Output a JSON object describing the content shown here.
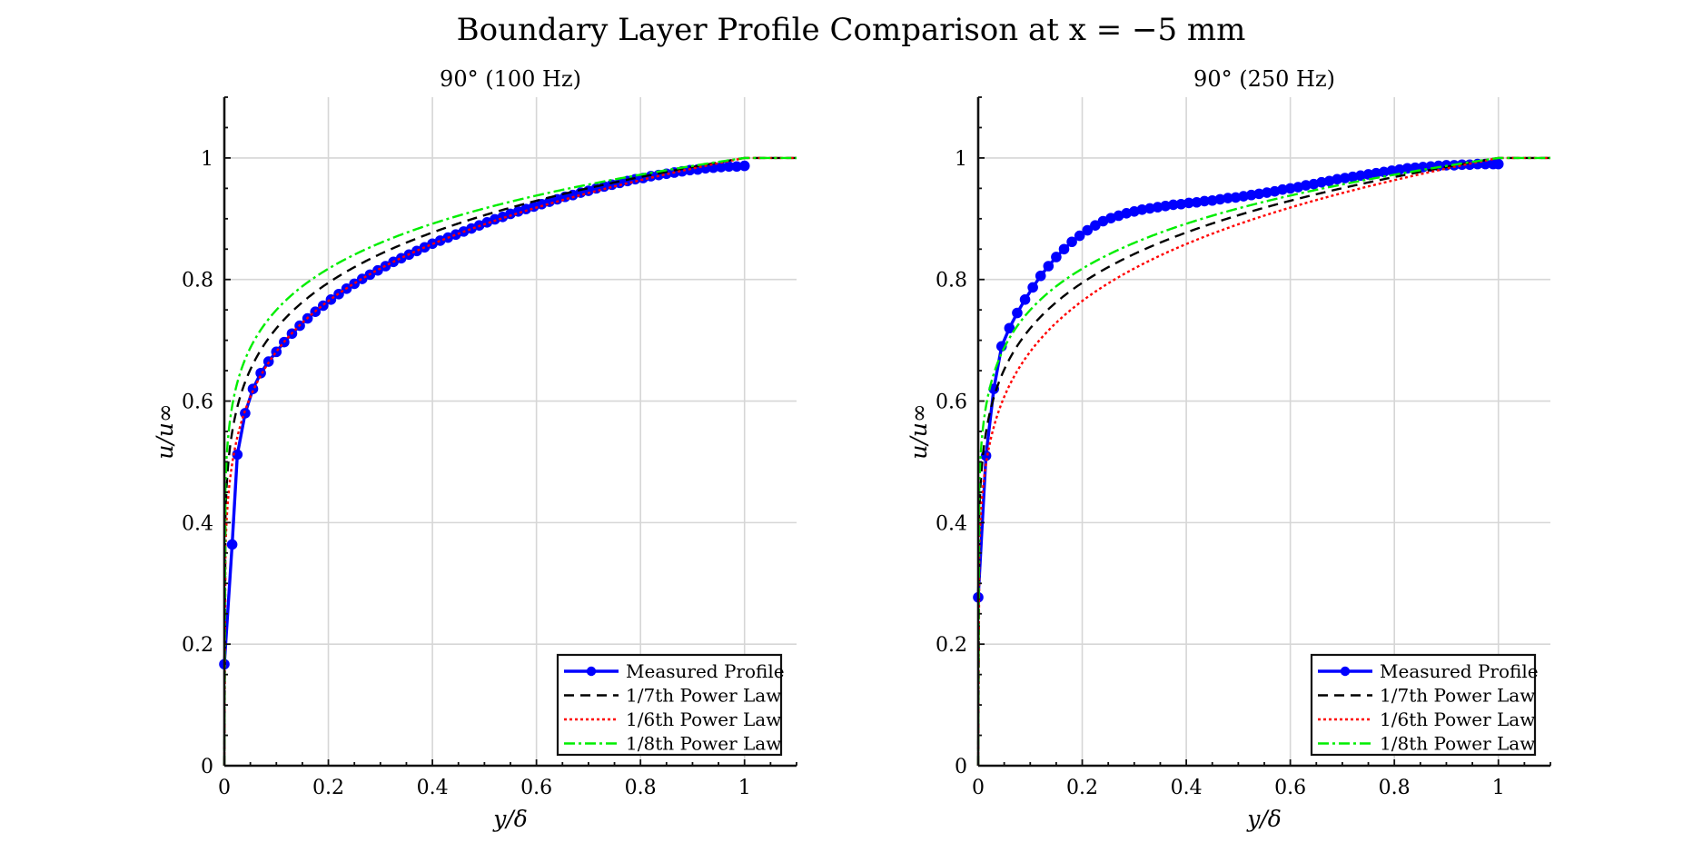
{
  "figure": {
    "suptitle": "Boundary Layer Profile Comparison at x = −5 mm"
  },
  "chart_data": [
    {
      "type": "line",
      "title": "90° (100 Hz)",
      "xlabel": "y/δ",
      "ylabel": "u/u∞",
      "xlim": [
        0,
        1.1
      ],
      "ylim": [
        0,
        1.1
      ],
      "xticks": [
        0,
        0.2,
        0.4,
        0.6,
        0.8,
        1
      ],
      "xtick_labels": [
        "0",
        "0.2",
        "0.4",
        "0.6",
        "0.8",
        "1"
      ],
      "yticks": [
        0,
        0.2,
        0.4,
        0.6,
        0.8,
        1
      ],
      "ytick_labels": [
        "0",
        "0.2",
        "0.4",
        "0.6",
        "0.8",
        "1"
      ],
      "grid": true,
      "legend_position": "bottom-right",
      "series": [
        {
          "name": "Measured Profile",
          "kind": "measured",
          "color": "#0000ff",
          "x": [
            0,
            0.015,
            0.025,
            0.04,
            0.055,
            0.07,
            0.085,
            0.1,
            0.115,
            0.13,
            0.145,
            0.16,
            0.175,
            0.19,
            0.205,
            0.22,
            0.235,
            0.25,
            0.265,
            0.28,
            0.295,
            0.31,
            0.325,
            0.34,
            0.355,
            0.37,
            0.385,
            0.4,
            0.415,
            0.43,
            0.445,
            0.46,
            0.475,
            0.49,
            0.505,
            0.52,
            0.535,
            0.55,
            0.565,
            0.58,
            0.595,
            0.61,
            0.625,
            0.64,
            0.655,
            0.67,
            0.685,
            0.7,
            0.715,
            0.73,
            0.745,
            0.76,
            0.775,
            0.79,
            0.805,
            0.82,
            0.835,
            0.85,
            0.865,
            0.88,
            0.895,
            0.91,
            0.925,
            0.94,
            0.955,
            0.97,
            0.985,
            1.0
          ],
          "y": [
            0.167,
            0.364,
            0.512,
            0.58,
            0.62,
            0.646,
            0.665,
            0.681,
            0.697,
            0.711,
            0.724,
            0.736,
            0.747,
            0.757,
            0.767,
            0.776,
            0.785,
            0.793,
            0.801,
            0.808,
            0.815,
            0.822,
            0.829,
            0.835,
            0.841,
            0.847,
            0.853,
            0.859,
            0.864,
            0.869,
            0.874,
            0.879,
            0.884,
            0.889,
            0.894,
            0.899,
            0.903,
            0.908,
            0.912,
            0.916,
            0.92,
            0.924,
            0.928,
            0.932,
            0.936,
            0.939,
            0.943,
            0.946,
            0.95,
            0.953,
            0.956,
            0.959,
            0.962,
            0.965,
            0.967,
            0.97,
            0.972,
            0.974,
            0.976,
            0.978,
            0.98,
            0.981,
            0.983,
            0.984,
            0.985,
            0.986,
            0.986,
            0.987
          ]
        },
        {
          "name": "1/7th Power Law",
          "kind": "power",
          "exponent": 0.142857,
          "color": "#000000",
          "dash": "11,7"
        },
        {
          "name": "1/6th Power Law",
          "kind": "power",
          "exponent": 0.166667,
          "color": "#ff0000",
          "dash": "3,3"
        },
        {
          "name": "1/8th Power Law",
          "kind": "power",
          "exponent": 0.125,
          "color": "#00ee00",
          "dash": "12,4,3,4"
        }
      ]
    },
    {
      "type": "line",
      "title": "90° (250 Hz)",
      "xlabel": "y/δ",
      "ylabel": "u/u∞",
      "xlim": [
        0,
        1.1
      ],
      "ylim": [
        0,
        1.1
      ],
      "xticks": [
        0,
        0.2,
        0.4,
        0.6,
        0.8,
        1
      ],
      "xtick_labels": [
        "0",
        "0.2",
        "0.4",
        "0.6",
        "0.8",
        "1"
      ],
      "yticks": [
        0,
        0.2,
        0.4,
        0.6,
        0.8,
        1
      ],
      "ytick_labels": [
        "0",
        "0.2",
        "0.4",
        "0.6",
        "0.8",
        "1"
      ],
      "grid": true,
      "legend_position": "bottom-right",
      "series": [
        {
          "name": "Measured Profile",
          "kind": "measured",
          "color": "#0000ff",
          "x": [
            0,
            0.015,
            0.03,
            0.045,
            0.06,
            0.075,
            0.09,
            0.105,
            0.12,
            0.135,
            0.15,
            0.165,
            0.18,
            0.195,
            0.21,
            0.225,
            0.24,
            0.255,
            0.27,
            0.285,
            0.3,
            0.315,
            0.33,
            0.345,
            0.36,
            0.375,
            0.39,
            0.405,
            0.42,
            0.435,
            0.45,
            0.465,
            0.48,
            0.495,
            0.51,
            0.525,
            0.54,
            0.555,
            0.57,
            0.585,
            0.6,
            0.615,
            0.63,
            0.645,
            0.66,
            0.675,
            0.69,
            0.705,
            0.72,
            0.735,
            0.75,
            0.765,
            0.78,
            0.795,
            0.81,
            0.825,
            0.84,
            0.855,
            0.87,
            0.885,
            0.9,
            0.915,
            0.93,
            0.945,
            0.96,
            0.975,
            0.99,
            1.0
          ],
          "y": [
            0.277,
            0.51,
            0.62,
            0.69,
            0.72,
            0.745,
            0.767,
            0.787,
            0.806,
            0.822,
            0.837,
            0.85,
            0.862,
            0.872,
            0.881,
            0.889,
            0.896,
            0.901,
            0.905,
            0.909,
            0.912,
            0.915,
            0.917,
            0.919,
            0.921,
            0.923,
            0.924,
            0.926,
            0.927,
            0.929,
            0.93,
            0.932,
            0.934,
            0.935,
            0.937,
            0.939,
            0.941,
            0.943,
            0.945,
            0.948,
            0.95,
            0.952,
            0.955,
            0.957,
            0.96,
            0.962,
            0.965,
            0.967,
            0.969,
            0.971,
            0.973,
            0.975,
            0.977,
            0.979,
            0.981,
            0.983,
            0.984,
            0.985,
            0.986,
            0.987,
            0.988,
            0.988,
            0.989,
            0.989,
            0.99,
            0.99,
            0.99,
            0.99
          ]
        },
        {
          "name": "1/7th Power Law",
          "kind": "power",
          "exponent": 0.142857,
          "color": "#000000",
          "dash": "11,7"
        },
        {
          "name": "1/6th Power Law",
          "kind": "power",
          "exponent": 0.166667,
          "color": "#ff0000",
          "dash": "3,3"
        },
        {
          "name": "1/8th Power Law",
          "kind": "power",
          "exponent": 0.125,
          "color": "#00ee00",
          "dash": "12,4,3,4"
        }
      ]
    }
  ]
}
